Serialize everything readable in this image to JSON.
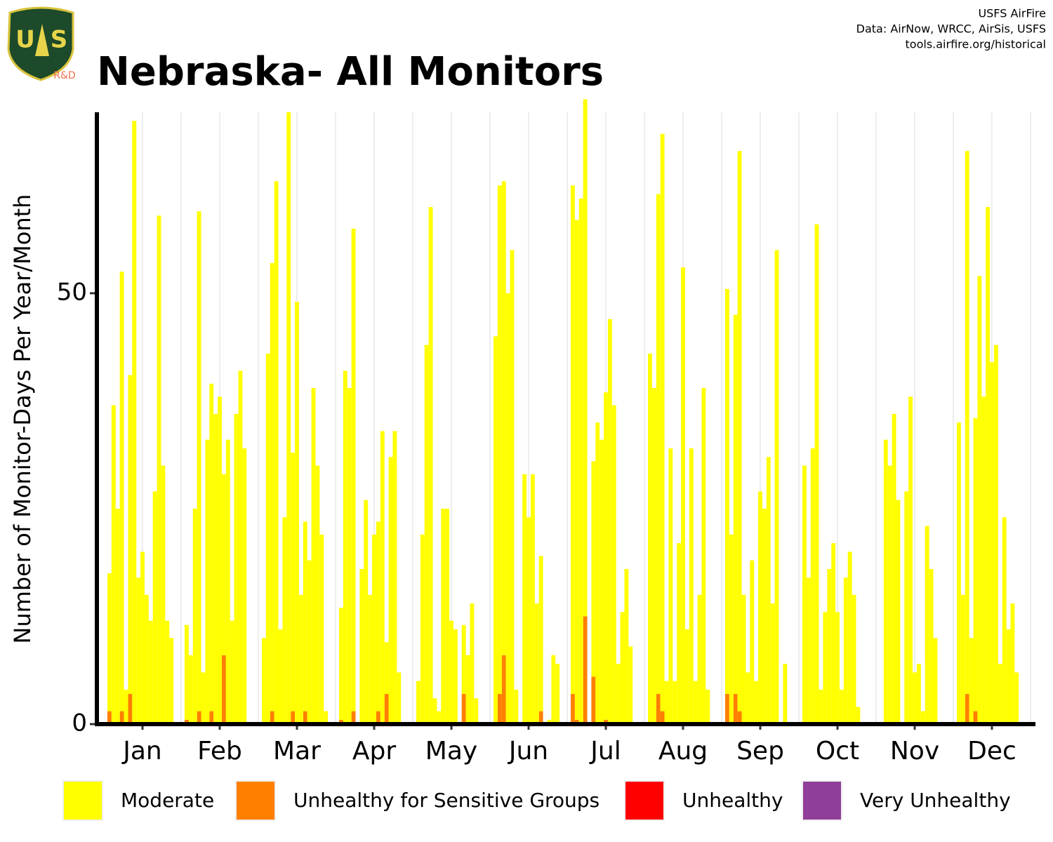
{
  "chart_data": {
    "type": "bar",
    "title": "Nebraska- All Monitors",
    "source": [
      "USFS AirFire",
      "Data: AirNow, WRCC, AirSis, USFS",
      "tools.airfire.org/historical"
    ],
    "logo": {
      "letters": [
        "U",
        "S"
      ],
      "badge": "R&D"
    },
    "y_label": "Number of Monitor-Days Per Year/Month",
    "categories": [
      "Jan",
      "Feb",
      "Mar",
      "Apr",
      "May",
      "Jun",
      "Jul",
      "Aug",
      "Sep",
      "Oct",
      "Nov",
      "Dec"
    ],
    "ylim": [
      0,
      71
    ],
    "yticks": [
      0,
      50
    ],
    "grid": true,
    "stacked": true,
    "series": [
      {
        "name": "Unhealthy for Sensitive Groups",
        "color": "#ff7f00",
        "values": [
          [
            1.5,
            0,
            0,
            1.5,
            0,
            3.5,
            0,
            0,
            0,
            0,
            0,
            0,
            0,
            0,
            0,
            0,
            0
          ],
          [
            0.5,
            0,
            0,
            1.5,
            0,
            0,
            1.5,
            0,
            0,
            8,
            0,
            0,
            0,
            0,
            0,
            0,
            0
          ],
          [
            0,
            0,
            1.5,
            0,
            0,
            0,
            0,
            1.5,
            0,
            0,
            1.5,
            0,
            0,
            0,
            0,
            0,
            0
          ],
          [
            0.5,
            0,
            0,
            1.5,
            0,
            0,
            0,
            0,
            0,
            1.5,
            0,
            3.5,
            0,
            0,
            0,
            0,
            0
          ],
          [
            0,
            0,
            0,
            0,
            0,
            0,
            0,
            0,
            0,
            0,
            0,
            3.5,
            0,
            0,
            0,
            0,
            0
          ],
          [
            0,
            3.5,
            8,
            0,
            0,
            0,
            0,
            0,
            0,
            0,
            0,
            1.5,
            0,
            0,
            0,
            0,
            0
          ],
          [
            3.5,
            0.5,
            0,
            12.5,
            0,
            5.5,
            0,
            0,
            0.5,
            0,
            0,
            0,
            0,
            0,
            0,
            0,
            0
          ],
          [
            0,
            0,
            3.5,
            1.5,
            0,
            0,
            0,
            0,
            0,
            0,
            0,
            0,
            0,
            0,
            0,
            0,
            0
          ],
          [
            3.5,
            0,
            3.5,
            1.5,
            0,
            0,
            0,
            0,
            0,
            0,
            0,
            0,
            0,
            0,
            0,
            0,
            0
          ],
          [
            0,
            0,
            0,
            0,
            0,
            0,
            0,
            0,
            0,
            0,
            0,
            0,
            0,
            0,
            0,
            0,
            0
          ],
          [
            0,
            0,
            0,
            0,
            0,
            0,
            0,
            0,
            0,
            0,
            0,
            0,
            0,
            0,
            0,
            0,
            0
          ],
          [
            0,
            0,
            3.5,
            0,
            1.5,
            0,
            0,
            0,
            0,
            0,
            0,
            0,
            0,
            0,
            0,
            0,
            0
          ]
        ]
      },
      {
        "name": "Moderate",
        "color": "#ffff00",
        "values": [
          [
            16,
            37,
            25,
            51,
            4,
            37,
            70,
            17,
            20,
            15,
            12,
            27,
            59,
            30,
            12,
            10,
            0
          ],
          [
            11,
            8,
            25,
            58,
            6,
            33,
            38,
            36,
            38,
            21,
            33,
            12,
            36,
            41,
            32,
            0,
            0
          ],
          [
            10,
            43,
            52,
            63,
            11,
            24,
            71,
            30,
            49,
            15,
            22,
            19,
            39,
            30,
            22,
            1.5,
            0
          ],
          [
            13,
            41,
            39,
            56,
            0,
            18,
            26,
            15,
            22,
            22,
            34,
            6,
            31,
            34,
            6,
            0,
            0
          ],
          [
            5,
            22,
            44,
            60,
            3,
            1.5,
            25,
            25,
            12,
            11,
            0,
            8,
            8,
            14,
            3,
            0,
            0
          ],
          [
            45,
            59,
            55,
            50,
            55,
            4,
            0,
            29,
            24,
            29,
            14,
            18,
            0,
            0.5,
            8,
            7,
            0
          ],
          [
            59,
            58,
            61,
            60,
            0,
            25,
            35,
            33,
            38,
            47,
            37,
            7,
            13,
            18,
            9,
            0,
            0
          ],
          [
            43,
            39,
            58,
            67,
            5,
            32,
            5,
            21,
            53,
            11,
            32,
            5,
            15,
            39,
            4,
            0,
            0
          ],
          [
            47,
            22,
            44,
            65,
            15,
            6,
            19,
            5,
            27,
            25,
            31,
            14,
            55,
            0,
            7,
            0,
            0
          ],
          [
            30,
            17,
            32,
            58,
            4,
            13,
            18,
            21,
            13,
            4,
            17,
            20,
            15,
            2,
            0,
            0,
            0
          ],
          [
            0,
            33,
            30,
            36,
            26,
            0,
            27,
            38,
            6,
            7,
            1.5,
            23,
            18,
            10,
            0,
            0,
            0
          ],
          [
            35,
            15,
            63,
            10,
            34,
            52,
            38,
            60,
            42,
            44,
            7,
            24,
            11,
            14,
            6,
            0,
            0
          ]
        ]
      },
      {
        "name": "Unhealthy",
        "color": "#ff0000"
      },
      {
        "name": "Very Unhealthy",
        "color": "#8f3f97"
      }
    ],
    "legend": "bottom"
  }
}
